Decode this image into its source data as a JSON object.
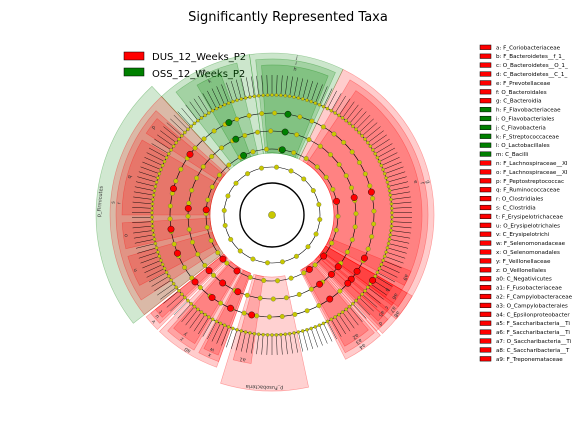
{
  "chart_data": {
    "type": "cladogram",
    "title": "Significantly Represented Taxa",
    "groups": [
      {
        "name": "DUS_12_Weeks_P2",
        "color": "#ff0000"
      },
      {
        "name": "OSS_12_Weeks_P2",
        "color": "#008000"
      }
    ],
    "colors": {
      "neutral_node": "#c8c800",
      "red_fill": "#ff9999",
      "green_fill": "#99cc99"
    },
    "taxa_key": [
      {
        "code": "a",
        "label": "a: F_Coriobacteriaceae",
        "group": "DUS_12_Weeks_P2"
      },
      {
        "code": "b",
        "label": "b: F_Bacteroidetes__f_1_",
        "group": "DUS_12_Weeks_P2"
      },
      {
        "code": "c",
        "label": "c: O_Bacteroidetes__O_1_",
        "group": "DUS_12_Weeks_P2"
      },
      {
        "code": "d",
        "label": "d: C_Bacteroidetes__C_1_",
        "group": "DUS_12_Weeks_P2"
      },
      {
        "code": "e",
        "label": "e: F_Prevotellaceae",
        "group": "DUS_12_Weeks_P2"
      },
      {
        "code": "f",
        "label": "f: O_Bacteroidales",
        "group": "DUS_12_Weeks_P2"
      },
      {
        "code": "g",
        "label": "g: C_Bacteroidia",
        "group": "DUS_12_Weeks_P2"
      },
      {
        "code": "h",
        "label": "h: F_Flavobacteriaceae",
        "group": "OSS_12_Weeks_P2"
      },
      {
        "code": "i",
        "label": "i: O_Flavobacteriales",
        "group": "OSS_12_Weeks_P2"
      },
      {
        "code": "j",
        "label": "j: C_Flavobacteria",
        "group": "OSS_12_Weeks_P2"
      },
      {
        "code": "k",
        "label": "k: F_Streptococcaceae",
        "group": "OSS_12_Weeks_P2"
      },
      {
        "code": "l",
        "label": "l: O_Lactobacillales",
        "group": "OSS_12_Weeks_P2"
      },
      {
        "code": "m",
        "label": "m: C_Bacilli",
        "group": "OSS_12_Weeks_P2"
      },
      {
        "code": "n",
        "label": "n: F_Lachnospiraceae__XI",
        "group": "DUS_12_Weeks_P2"
      },
      {
        "code": "o",
        "label": "o: F_Lachnospiraceae__XI",
        "group": "DUS_12_Weeks_P2"
      },
      {
        "code": "p",
        "label": "p: F_Peptostreptococcac",
        "group": "DUS_12_Weeks_P2"
      },
      {
        "code": "q",
        "label": "q: F_Ruminococcaceae",
        "group": "DUS_12_Weeks_P2"
      },
      {
        "code": "r",
        "label": "r: O_Clostridiales",
        "group": "DUS_12_Weeks_P2"
      },
      {
        "code": "s",
        "label": "s: C_Clostridia",
        "group": "DUS_12_Weeks_P2"
      },
      {
        "code": "t",
        "label": "t: F_Erysipelotrichaceae",
        "group": "DUS_12_Weeks_P2"
      },
      {
        "code": "u",
        "label": "u: O_Erysipelotrichales",
        "group": "DUS_12_Weeks_P2"
      },
      {
        "code": "v",
        "label": "v: C_Erysipelotrichi",
        "group": "DUS_12_Weeks_P2"
      },
      {
        "code": "w",
        "label": "w: F_Selenomonadaceae",
        "group": "DUS_12_Weeks_P2"
      },
      {
        "code": "x",
        "label": "x: O_Selenomonadales",
        "group": "DUS_12_Weeks_P2"
      },
      {
        "code": "y",
        "label": "y: F_Veillonellaceae",
        "group": "DUS_12_Weeks_P2"
      },
      {
        "code": "z",
        "label": "z: O_Veillonellales",
        "group": "DUS_12_Weeks_P2"
      },
      {
        "code": "a0",
        "label": "a0: C_Negativicutes",
        "group": "DUS_12_Weeks_P2"
      },
      {
        "code": "a1",
        "label": "a1: F_Fusobacteriaceae",
        "group": "DUS_12_Weeks_P2"
      },
      {
        "code": "a2",
        "label": "a2: F_Campylobacteraceae",
        "group": "DUS_12_Weeks_P2"
      },
      {
        "code": "a3",
        "label": "a3: O_Campylobacterales",
        "group": "DUS_12_Weeks_P2"
      },
      {
        "code": "a4",
        "label": "a4: C_Epsilonproteobacter",
        "group": "DUS_12_Weeks_P2"
      },
      {
        "code": "a5",
        "label": "a5: F_Saccharibacteria__Ti",
        "group": "DUS_12_Weeks_P2"
      },
      {
        "code": "a6",
        "label": "a6: F_Saccharibacteria__Ti",
        "group": "DUS_12_Weeks_P2"
      },
      {
        "code": "a7",
        "label": "a7: O_Saccharibacteria__Ti",
        "group": "DUS_12_Weeks_P2"
      },
      {
        "code": "a8",
        "label": "a8: C_Saccharibacteria__T",
        "group": "DUS_12_Weeks_P2"
      },
      {
        "code": "a9",
        "label": "a9: F_Treponemataceae",
        "group": "DUS_12_Weeks_P2"
      }
    ],
    "clades": [
      {
        "label": "g",
        "group": "DUS_12_Weeks_P2",
        "level": 1,
        "from": -64,
        "to": 40
      },
      {
        "label": "f",
        "group": "DUS_12_Weeks_P2",
        "level": 2,
        "from": -60,
        "to": 36
      },
      {
        "label": "e",
        "group": "DUS_12_Weeks_P2",
        "level": 3,
        "from": -56,
        "to": 30
      },
      {
        "label": "b",
        "group": "DUS_12_Weeks_P2",
        "level": 4,
        "from": 30,
        "to": 36
      },
      {
        "label": "c",
        "group": "DUS_12_Weeks_P2",
        "level": 3,
        "from": 36,
        "to": 42
      },
      {
        "label": "d",
        "group": "DUS_12_Weeks_P2",
        "level": 2,
        "from": 42,
        "to": 48
      },
      {
        "label": "j",
        "group": "OSS_12_Weeks_P2",
        "level": 1,
        "from": -98,
        "to": -64
      },
      {
        "label": "i",
        "group": "OSS_12_Weeks_P2",
        "level": 2,
        "from": -96,
        "to": -66
      },
      {
        "label": "h",
        "group": "OSS_12_Weeks_P2",
        "level": 3,
        "from": -94,
        "to": -68
      },
      {
        "label": "m",
        "group": "OSS_12_Weeks_P2",
        "level": 1,
        "from": -133,
        "to": -98
      },
      {
        "label": "l",
        "group": "OSS_12_Weeks_P2",
        "level": 2,
        "from": -128,
        "to": -103
      },
      {
        "label": "k",
        "group": "OSS_12_Weeks_P2",
        "level": 3,
        "from": -120,
        "to": -110
      },
      {
        "label": "p_Firmicutes",
        "group": "OSS_12_Weeks_P2",
        "level": 0,
        "from": -133,
        "to": -218
      },
      {
        "label": "s",
        "group": "DUS_12_Weeks_P2",
        "level": 1,
        "from": -218,
        "to": -133
      },
      {
        "label": "r",
        "group": "DUS_12_Weeks_P2",
        "level": 2,
        "from": -213,
        "to": -138
      },
      {
        "label": "n",
        "group": "DUS_12_Weeks_P2",
        "level": 3,
        "from": -208,
        "to": -196
      },
      {
        "label": "o",
        "group": "DUS_12_Weeks_P2",
        "level": 3,
        "from": -193,
        "to": -183
      },
      {
        "label": "q",
        "group": "DUS_12_Weeks_P2",
        "level": 3,
        "from": -180,
        "to": -150
      },
      {
        "label": "p",
        "group": "DUS_12_Weeks_P2",
        "level": 3,
        "from": -147,
        "to": -140
      },
      {
        "label": "v",
        "group": "DUS_12_Weeks_P2",
        "level": 1,
        "from": -225,
        "to": -219
      },
      {
        "label": "u",
        "group": "DUS_12_Weeks_P2",
        "level": 2,
        "from": -224,
        "to": -219
      },
      {
        "label": "t",
        "group": "DUS_12_Weeks_P2",
        "level": 3,
        "from": -223,
        "to": -219
      },
      {
        "label": "a0",
        "group": "DUS_12_Weeks_P2",
        "level": 1,
        "from": -250,
        "to": -226
      },
      {
        "label": "x",
        "group": "DUS_12_Weeks_P2",
        "level": 2,
        "from": -250,
        "to": -242
      },
      {
        "label": "w",
        "group": "DUS_12_Weeks_P2",
        "level": 3,
        "from": -249,
        "to": -243
      },
      {
        "label": "z",
        "group": "DUS_12_Weeks_P2",
        "level": 2,
        "from": -240,
        "to": -228
      },
      {
        "label": "y",
        "group": "DUS_12_Weeks_P2",
        "level": 3,
        "from": -239,
        "to": -229
      },
      {
        "label": "p_Fusobacteria",
        "group": "DUS_12_Weeks_P2",
        "level": 0,
        "from": -282,
        "to": -253
      },
      {
        "label": "a1",
        "group": "DUS_12_Weeks_P2",
        "level": 3,
        "from": -262,
        "to": -255
      },
      {
        "label": "a4",
        "group": "DUS_12_Weeks_P2",
        "level": 1,
        "from": -312,
        "to": -297
      },
      {
        "label": "a3",
        "group": "DUS_12_Weeks_P2",
        "level": 2,
        "from": -311,
        "to": -298
      },
      {
        "label": "a2",
        "group": "DUS_12_Weeks_P2",
        "level": 3,
        "from": -310,
        "to": -299
      },
      {
        "label": "a8",
        "group": "DUS_12_Weeks_P2",
        "level": 1,
        "from": -330,
        "to": -313
      },
      {
        "label": "a7",
        "group": "DUS_12_Weeks_P2",
        "level": 2,
        "from": -330,
        "to": -314
      },
      {
        "label": "a6",
        "group": "DUS_12_Weeks_P2",
        "level": 3,
        "from": -330,
        "to": -323
      },
      {
        "label": "a5",
        "group": "DUS_12_Weeks_P2",
        "level": 3,
        "from": -321,
        "to": -315
      },
      {
        "label": "a9",
        "group": "DUS_12_Weeks_P2",
        "level": 3,
        "from": -338,
        "to": -332
      }
    ]
  }
}
